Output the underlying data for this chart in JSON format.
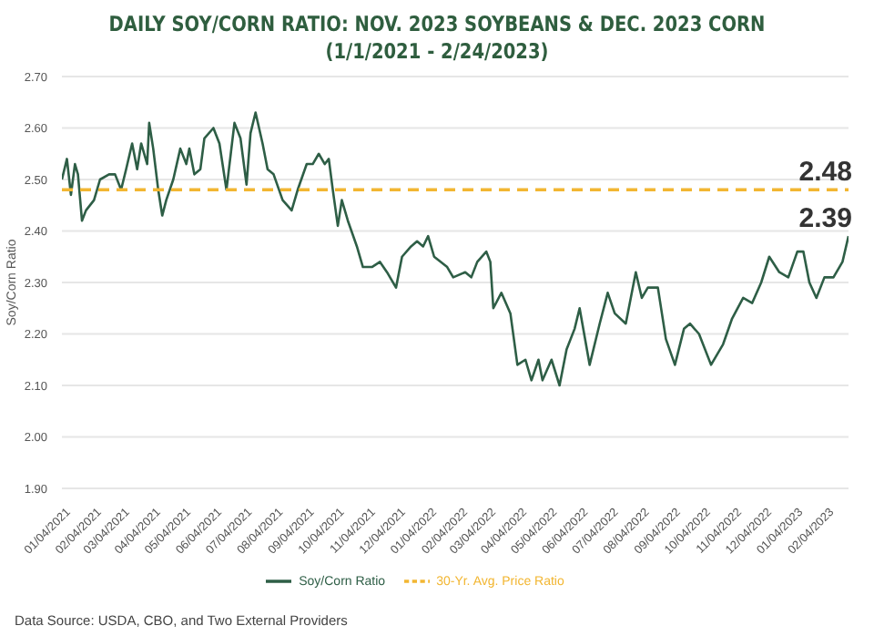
{
  "chart_data": {
    "type": "line",
    "title": "DAILY SOY/CORN RATIO: NOV. 2023 SOYBEANS & DEC. 2023 CORN",
    "subtitle": "(1/1/2021 - 2/24/2023)",
    "ylabel": "Soy/Corn Ratio",
    "xlim": [
      "2021-01-01",
      "2023-02-24"
    ],
    "xticks": [
      {
        "value": "2021-01-04",
        "label": "01/04/2021"
      },
      {
        "value": "2021-02-04",
        "label": "02/04/2021"
      },
      {
        "value": "2021-03-04",
        "label": "03/04/2021"
      },
      {
        "value": "2021-04-04",
        "label": "04/04/2021"
      },
      {
        "value": "2021-05-04",
        "label": "05/04/2021"
      },
      {
        "value": "2021-06-04",
        "label": "06/04/2021"
      },
      {
        "value": "2021-07-04",
        "label": "07/04/2021"
      },
      {
        "value": "2021-08-04",
        "label": "08/04/2021"
      },
      {
        "value": "2021-09-04",
        "label": "09/04/2021"
      },
      {
        "value": "2021-10-04",
        "label": "10/04/2021"
      },
      {
        "value": "2021-11-04",
        "label": "11/04/2021"
      },
      {
        "value": "2021-12-04",
        "label": "12/04/2021"
      },
      {
        "value": "2022-01-04",
        "label": "01/04/2022"
      },
      {
        "value": "2022-02-04",
        "label": "02/04/2022"
      },
      {
        "value": "2022-03-04",
        "label": "03/04/2022"
      },
      {
        "value": "2022-04-04",
        "label": "04/04/2022"
      },
      {
        "value": "2022-05-04",
        "label": "05/04/2022"
      },
      {
        "value": "2022-06-04",
        "label": "06/04/2022"
      },
      {
        "value": "2022-07-04",
        "label": "07/04/2022"
      },
      {
        "value": "2022-08-04",
        "label": "08/04/2022"
      },
      {
        "value": "2022-09-04",
        "label": "09/04/2022"
      },
      {
        "value": "2022-10-04",
        "label": "10/04/2022"
      },
      {
        "value": "2022-11-04",
        "label": "11/04/2022"
      },
      {
        "value": "2022-12-04",
        "label": "12/04/2022"
      },
      {
        "value": "2023-01-04",
        "label": "01/04/2023"
      },
      {
        "value": "2023-02-04",
        "label": "02/04/2023"
      }
    ],
    "ylim": [
      1.9,
      2.7
    ],
    "yticks": [
      {
        "value": 1.9,
        "label": "1.90"
      },
      {
        "value": 2.0,
        "label": "2.00"
      },
      {
        "value": 2.1,
        "label": "2.10"
      },
      {
        "value": 2.2,
        "label": "2.20"
      },
      {
        "value": 2.3,
        "label": "2.30"
      },
      {
        "value": 2.4,
        "label": "2.40"
      },
      {
        "value": 2.5,
        "label": "2.50"
      },
      {
        "value": 2.6,
        "label": "2.60"
      },
      {
        "value": 2.7,
        "label": "2.70"
      }
    ],
    "grid": "y",
    "legend": "bottom",
    "series": [
      {
        "name": "Soy/Corn Ratio",
        "type": "line",
        "color": "#2e5e46",
        "line_style": "solid",
        "x": [
          "2021-01-01",
          "2021-01-06",
          "2021-01-10",
          "2021-01-14",
          "2021-01-17",
          "2021-01-21",
          "2021-01-25",
          "2021-02-02",
          "2021-02-08",
          "2021-02-17",
          "2021-02-23",
          "2021-03-01",
          "2021-03-06",
          "2021-03-12",
          "2021-03-17",
          "2021-03-21",
          "2021-03-27",
          "2021-03-29",
          "2021-04-02",
          "2021-04-07",
          "2021-04-11",
          "2021-04-15",
          "2021-04-22",
          "2021-04-29",
          "2021-05-05",
          "2021-05-08",
          "2021-05-13",
          "2021-05-19",
          "2021-05-23",
          "2021-06-01",
          "2021-06-07",
          "2021-06-14",
          "2021-06-22",
          "2021-06-28",
          "2021-07-04",
          "2021-07-08",
          "2021-07-13",
          "2021-07-20",
          "2021-07-25",
          "2021-07-31",
          "2021-08-09",
          "2021-08-18",
          "2021-08-24",
          "2021-09-02",
          "2021-09-08",
          "2021-09-14",
          "2021-09-20",
          "2021-09-24",
          "2021-09-28",
          "2021-10-03",
          "2021-10-07",
          "2021-10-13",
          "2021-10-22",
          "2021-10-28",
          "2021-11-06",
          "2021-11-14",
          "2021-11-21",
          "2021-11-30",
          "2021-12-06",
          "2021-12-15",
          "2021-12-21",
          "2021-12-27",
          "2022-01-01",
          "2022-01-07",
          "2022-01-20",
          "2022-01-26",
          "2022-02-07",
          "2022-02-13",
          "2022-02-19",
          "2022-02-28",
          "2022-03-04",
          "2022-03-07",
          "2022-03-15",
          "2022-03-24",
          "2022-03-31",
          "2022-04-08",
          "2022-04-14",
          "2022-04-21",
          "2022-04-25",
          "2022-05-04",
          "2022-05-12",
          "2022-05-19",
          "2022-05-27",
          "2022-06-01",
          "2022-06-11",
          "2022-06-21",
          "2022-06-29",
          "2022-07-06",
          "2022-07-17",
          "2022-07-27",
          "2022-08-02",
          "2022-08-08",
          "2022-08-18",
          "2022-08-26",
          "2022-09-04",
          "2022-09-13",
          "2022-09-19",
          "2022-09-28",
          "2022-10-10",
          "2022-10-22",
          "2022-10-31",
          "2022-11-11",
          "2022-11-20",
          "2022-11-29",
          "2022-12-07",
          "2022-12-17",
          "2022-12-26",
          "2023-01-04",
          "2023-01-10",
          "2023-01-16",
          "2023-01-23",
          "2023-01-31",
          "2023-02-09",
          "2023-02-18",
          "2023-02-24"
        ],
        "values": [
          2.5,
          2.54,
          2.47,
          2.53,
          2.51,
          2.42,
          2.44,
          2.46,
          2.5,
          2.51,
          2.51,
          2.48,
          2.52,
          2.57,
          2.52,
          2.57,
          2.53,
          2.61,
          2.56,
          2.48,
          2.43,
          2.46,
          2.5,
          2.56,
          2.53,
          2.56,
          2.51,
          2.52,
          2.58,
          2.6,
          2.57,
          2.48,
          2.61,
          2.58,
          2.49,
          2.59,
          2.63,
          2.57,
          2.52,
          2.51,
          2.46,
          2.44,
          2.48,
          2.53,
          2.53,
          2.55,
          2.53,
          2.54,
          2.48,
          2.41,
          2.46,
          2.42,
          2.37,
          2.33,
          2.33,
          2.34,
          2.32,
          2.29,
          2.35,
          2.37,
          2.38,
          2.37,
          2.39,
          2.35,
          2.33,
          2.31,
          2.32,
          2.31,
          2.34,
          2.36,
          2.34,
          2.25,
          2.28,
          2.24,
          2.14,
          2.15,
          2.11,
          2.15,
          2.11,
          2.15,
          2.1,
          2.17,
          2.21,
          2.25,
          2.14,
          2.22,
          2.28,
          2.24,
          2.22,
          2.32,
          2.27,
          2.29,
          2.29,
          2.19,
          2.14,
          2.21,
          2.22,
          2.2,
          2.14,
          2.18,
          2.23,
          2.27,
          2.26,
          2.3,
          2.35,
          2.32,
          2.31,
          2.36,
          2.36,
          2.3,
          2.27,
          2.31,
          2.31,
          2.34,
          2.39
        ]
      },
      {
        "name": "30-Yr. Avg. Price Ratio",
        "type": "line",
        "color": "#f2b632",
        "line_style": "dashed",
        "x": [
          "2021-01-01",
          "2023-02-24"
        ],
        "values": [
          2.48,
          2.48
        ]
      }
    ],
    "annotations": [
      {
        "text": "2.48",
        "x": "2023-02-24",
        "y": 2.48
      },
      {
        "text": "2.39",
        "x": "2023-02-24",
        "y": 2.39
      },
      "Data Source: USDA, CBO, and Two External Providers"
    ]
  }
}
